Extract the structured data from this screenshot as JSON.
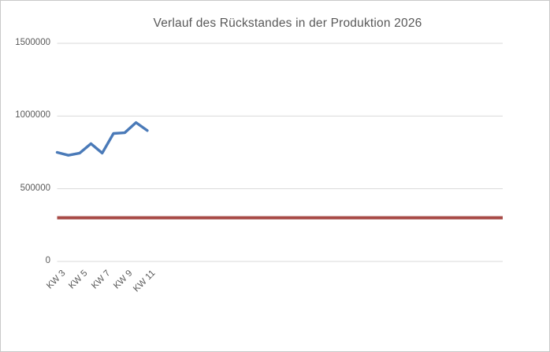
{
  "window": {
    "background": "#ffffff",
    "border_color": "#c9c9c9"
  },
  "chart_data": {
    "type": "line",
    "title": "Verlauf des Rückstandes in der Produktion 2026",
    "title_color": "#595959",
    "x": [
      "KW 3",
      "KW 4",
      "KW 5",
      "KW 6",
      "KW 7",
      "KW 8",
      "KW 9",
      "KW 10",
      "KW 11"
    ],
    "x_tick_labels": [
      "KW 3",
      "KW 5",
      "KW 7",
      "KW 9",
      "KW 11"
    ],
    "series": [
      {
        "name": "rueckstand-weekly-line",
        "color": "#4a7ab8",
        "values": [
          750000,
          730000,
          745000,
          810000,
          745000,
          880000,
          885000,
          955000,
          900000
        ]
      },
      {
        "name": "reference-constant-line",
        "color": "#a64440",
        "edge_color": "#c08683",
        "constant_value": 300000,
        "extends_full_plot_width": true
      }
    ],
    "ylim": [
      0,
      1500000
    ],
    "yticks": [
      0,
      500000,
      1000000,
      1500000
    ],
    "ytick_labels": [
      "0",
      "500000",
      "1000000",
      "1500000"
    ],
    "grid": "horizontal-only",
    "gridline_color": "#d9d9d9",
    "axis_text_color": "#595959",
    "legend": "none"
  }
}
